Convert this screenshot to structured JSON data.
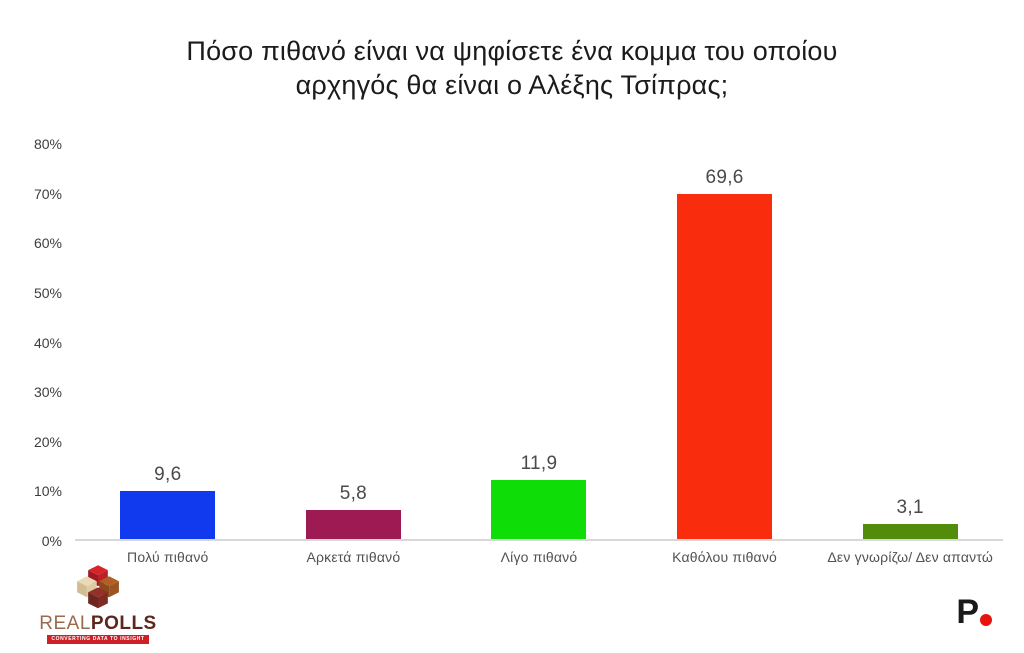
{
  "title": {
    "line1": "Πόσο πιθανό είναι να ψηφίσετε ένα κομμα του οποίου",
    "line2": "αρχηγός θα είναι ο Αλέξης Τσίπρας;"
  },
  "chart_data": {
    "type": "bar",
    "title": "Πόσο πιθανό είναι να ψηφίσετε ένα κομμα του οποίου αρχηγός θα είναι ο Αλέξης Τσίπρας;",
    "categories": [
      "Πολύ πιθανό",
      "Αρκετά πιθανό",
      "Λίγο πιθανό",
      "Καθόλου πιθανό",
      "Δεν γνωρίζω/ Δεν απαντώ"
    ],
    "values": [
      9.6,
      5.8,
      11.9,
      69.6,
      3.1
    ],
    "value_labels": [
      "9,6",
      "5,8",
      "11,9",
      "69,6",
      "3,1"
    ],
    "bar_colors": [
      "#1139ee",
      "#9e1a52",
      "#0fdd08",
      "#f92d0e",
      "#518c0b"
    ],
    "xlabel": "",
    "ylabel": "",
    "ylim": [
      0,
      80
    ],
    "ytick_step": 10,
    "ytick_labels": [
      "0%",
      "10%",
      "20%",
      "30%",
      "40%",
      "50%",
      "60%",
      "70%",
      "80%"
    ],
    "grid": false,
    "legend": false,
    "baseline_color": "#d8d8d8"
  },
  "footer": {
    "realpolls_logo": {
      "brand_light": "REAL",
      "brand_bold": "POLLS",
      "tagline": "CONVERTING DATA TO INSIGHT",
      "cube_red": "#d8232d",
      "cube_red_dark": "#9e1a22",
      "cube_cream": "#ead9b5",
      "cube_cream_dark": "#d2bd93",
      "cube_brown": "#b06024",
      "cube_brown_dark": "#8a4a1c",
      "cube_maroon": "#93302a",
      "cube_maroon_dark": "#6e2420"
    },
    "protagon_logo": {
      "letter": "P",
      "dot_color": "#e8140c"
    }
  }
}
